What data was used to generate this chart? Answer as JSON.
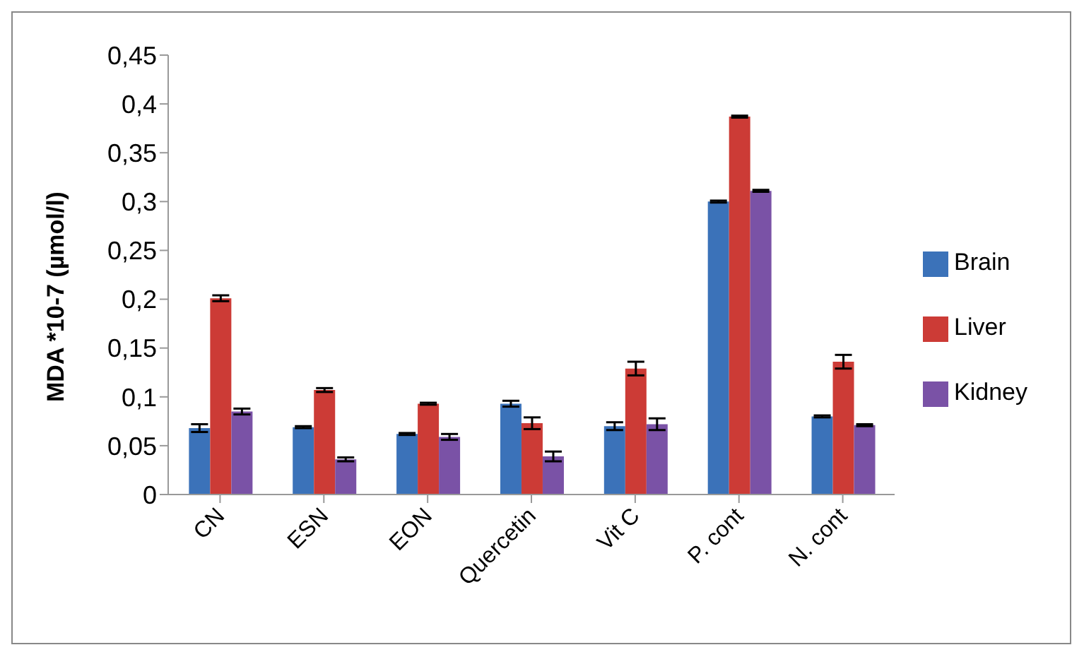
{
  "chart_data": {
    "type": "bar",
    "ylabel": "MDA *10-7 (µmol/l)",
    "categories": [
      "CN",
      "ESN",
      "EON",
      "Quercetin",
      "Vit C",
      "P. cont",
      "N. cont"
    ],
    "series": [
      {
        "name": "Brain",
        "color": "#3b72b9",
        "values": [
          0.068,
          0.069,
          0.062,
          0.093,
          0.07,
          0.3,
          0.08
        ],
        "errors": [
          0.004,
          0.001,
          0.001,
          0.003,
          0.004,
          0.001,
          0.001
        ]
      },
      {
        "name": "Liver",
        "color": "#cc3b36",
        "values": [
          0.201,
          0.107,
          0.093,
          0.073,
          0.129,
          0.387,
          0.136
        ],
        "errors": [
          0.003,
          0.002,
          0.001,
          0.006,
          0.007,
          0.001,
          0.007
        ]
      },
      {
        "name": "Kidney",
        "color": "#7a52a6",
        "values": [
          0.085,
          0.036,
          0.059,
          0.039,
          0.072,
          0.311,
          0.071
        ],
        "errors": [
          0.003,
          0.002,
          0.003,
          0.005,
          0.006,
          0.001,
          0.001
        ]
      }
    ],
    "ylim": [
      0,
      0.45
    ],
    "yticks": [
      0,
      {
        "value": 0.05,
        "label": "0,05"
      },
      {
        "value": 0.1,
        "label": "0,1"
      },
      {
        "value": 0.15,
        "label": "0,15"
      },
      {
        "value": 0.2,
        "label": "0,2"
      },
      {
        "value": 0.25,
        "label": "0,25"
      },
      {
        "value": 0.3,
        "label": "0,3"
      },
      {
        "value": 0.35,
        "label": "0,35"
      },
      {
        "value": 0.4,
        "label": "0,4"
      },
      {
        "value": 0.45,
        "label": "0,45"
      }
    ],
    "grid": false,
    "legend": "right"
  }
}
